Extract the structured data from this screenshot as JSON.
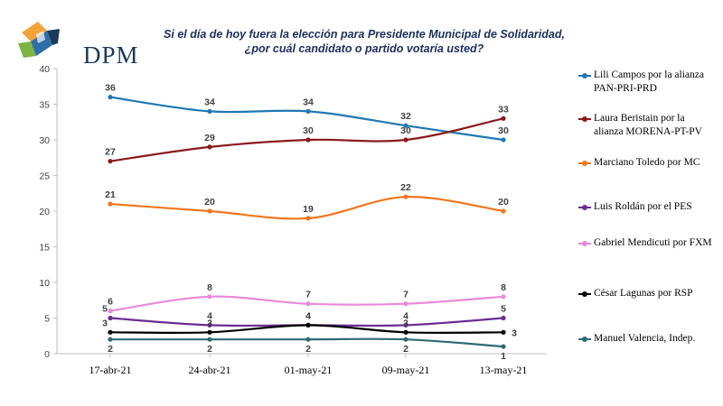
{
  "title_line1": "Si el día de hoy fuera la elección para Presidente Municipal de Solidaridad,",
  "title_line2": "¿por cuál candidato o partido votaría usted?",
  "logo_text": "DPM",
  "chart_data": {
    "type": "line",
    "categories": [
      "17-abr-21",
      "24-abr-21",
      "01-may-21",
      "09-may-21",
      "13-may-21"
    ],
    "ylim": [
      0,
      40
    ],
    "yticks": [
      0,
      5,
      10,
      15,
      20,
      25,
      30,
      35,
      40
    ],
    "grid": false,
    "legend_position": "right",
    "series": [
      {
        "name": "Lili Campos por la alianza PAN-PRI-PRD",
        "color": "#1f77b4",
        "values": [
          36,
          34,
          34,
          32,
          30
        ]
      },
      {
        "name": "Laura Beristain por la alianza MORENA-PT-PV",
        "color": "#8b1a1a",
        "values": [
          27,
          29,
          30,
          30,
          33
        ]
      },
      {
        "name": "Marciano Toledo por MC",
        "color": "#f0761e",
        "values": [
          21,
          20,
          19,
          22,
          20
        ]
      },
      {
        "name": "Luis Roldán por el PES",
        "color": "#6a2c91",
        "values": [
          5,
          4,
          4,
          4,
          5
        ]
      },
      {
        "name": "Gabriel Mendicuti por FXM",
        "color": "#e88ad8",
        "values": [
          6,
          8,
          7,
          7,
          8
        ]
      },
      {
        "name": "César Lagunas por RSP",
        "color": "#000000",
        "values": [
          3,
          3,
          4,
          3,
          3
        ]
      },
      {
        "name": "Manuel Valencia, Indep.",
        "color": "#2e6b73",
        "values": [
          2,
          2,
          2,
          2,
          1
        ]
      }
    ]
  }
}
